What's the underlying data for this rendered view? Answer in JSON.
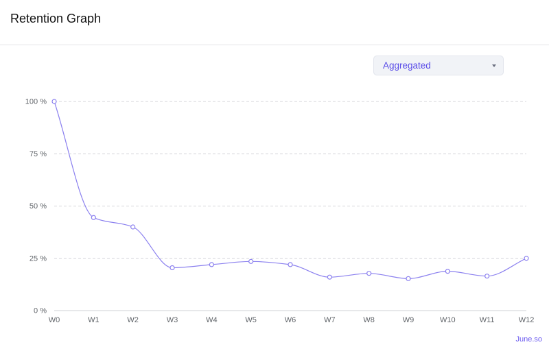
{
  "header": {
    "title": "Retention Graph"
  },
  "dropdown": {
    "selected": "Aggregated",
    "icon": "caret-down-icon"
  },
  "footer": {
    "link_text": "June.so"
  },
  "colors": {
    "line": "#8b80ef",
    "point_fill": "#ffffff",
    "grid": "#d4d4d8",
    "axis_text": "#5f6368",
    "accent": "#5b4ee8"
  },
  "chart_data": {
    "type": "line",
    "categories": [
      "W0",
      "W1",
      "W2",
      "W3",
      "W4",
      "W5",
      "W6",
      "W7",
      "W8",
      "W9",
      "W10",
      "W11",
      "W12"
    ],
    "series": [
      {
        "values": [
          100,
          44.5,
          40,
          20.5,
          22,
          23.5,
          22,
          16,
          17.8,
          15.3,
          18.8,
          16.5,
          25
        ]
      }
    ],
    "ylim": [
      0,
      100
    ],
    "yticks": [
      0,
      25,
      50,
      75,
      100
    ],
    "ytick_labels": [
      "0 %",
      "25 %",
      "50 %",
      "75 %",
      "100 %"
    ],
    "grid": true,
    "title": "",
    "xlabel": "",
    "ylabel": ""
  }
}
